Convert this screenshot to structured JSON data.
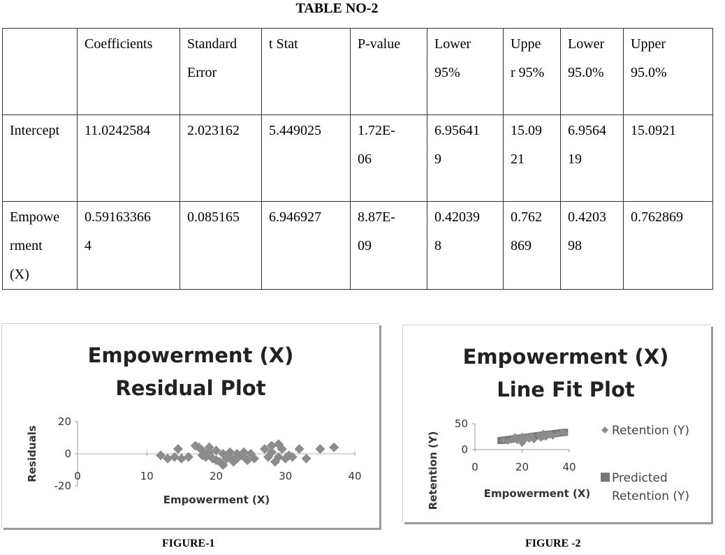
{
  "table": {
    "title": "TABLE NO-2",
    "header": {
      "c0": "",
      "c1": "Coefficients",
      "c2a": "Standard",
      "c2b": "Error",
      "c3": "t Stat",
      "c4": "P-value",
      "c5a": "Lower",
      "c5b": "95%",
      "c6a": "Uppe",
      "c6b": "r 95%",
      "c7a": "Lower",
      "c7b": "95.0%",
      "c8a": "Upper",
      "c8b": "95.0%"
    },
    "row1": {
      "label": "Intercept",
      "coef": "11.0242584",
      "se": "2.023162",
      "t": "5.449025",
      "p_a": "1.72E-",
      "p_b": "06",
      "l95_a": "6.95641",
      "l95_b": "9",
      "u95_a": "15.09",
      "u95_b": "21",
      "l950_a": "6.9564",
      "l950_b": "19",
      "u950": "15.0921"
    },
    "row2": {
      "label_a": "Empowe",
      "label_b": "rment",
      "label_c": "(X)",
      "coef_a": "0.59163366",
      "coef_b": "4",
      "se": "0.085165",
      "t": "6.946927",
      "p_a": "8.87E-",
      "p_b": "09",
      "l95_a": "0.42039",
      "l95_b": "8",
      "u95_a": "0.762",
      "u95_b": "869",
      "l950_a": "0.4203",
      "l950_b": "98",
      "u950": "0.762869"
    }
  },
  "figure1_label": "FIGURE-1",
  "figure2_label": "FIGURE -2",
  "chart_data": [
    {
      "type": "scatter",
      "title": "Empowerment (X) Residual Plot",
      "title_lines": [
        "Empowerment (X)",
        "Residual Plot"
      ],
      "xlabel": "Empowerment (X)",
      "ylabel": "Residuals",
      "xlim": [
        0,
        40
      ],
      "ylim": [
        -20,
        20
      ],
      "xticks": [
        "0",
        "10",
        "20",
        "30",
        "40"
      ],
      "yticks": [
        "20",
        "0",
        "-20"
      ],
      "marker_color": "#8c8c8c",
      "series": [
        {
          "x": [
            12,
            13,
            14,
            14.5,
            15,
            16,
            17,
            17.5,
            18,
            18,
            18.5,
            19,
            19,
            19.5,
            20,
            20,
            20.5,
            21,
            21,
            21.5,
            22,
            22,
            22.5,
            23,
            23,
            23.5,
            24,
            24,
            24.5,
            25,
            25.5,
            27,
            27.5,
            28,
            28,
            28.5,
            29,
            29,
            29.5,
            30,
            30.5,
            31,
            32,
            33,
            35,
            37
          ],
          "y": [
            -1,
            -3,
            -2,
            3,
            -3,
            -2,
            5,
            4,
            -1,
            2,
            -2,
            4,
            1,
            -3,
            -4,
            2,
            -5,
            0,
            -7,
            -3,
            1,
            -2,
            -5,
            0,
            -3,
            -1,
            -2,
            1,
            -4,
            0,
            -3,
            3,
            -2,
            5,
            1,
            -5,
            6,
            -2,
            3,
            -3,
            -1,
            -2,
            3,
            -3,
            3,
            4
          ]
        }
      ]
    },
    {
      "type": "scatter",
      "title": "Empowerment (X) Line Fit  Plot",
      "title_lines": [
        "Empowerment (X)",
        "Line Fit  Plot"
      ],
      "xlabel": "Empowerment (X)",
      "ylabel": "Retention (Y)",
      "xlim": [
        0,
        40
      ],
      "ylim": [
        0,
        50
      ],
      "xticks": [
        "0",
        "20",
        "40"
      ],
      "yticks": [
        "50",
        "0"
      ],
      "legend_position": "right",
      "legend": [
        "Retention (Y)",
        "Predicted Retention (Y)"
      ],
      "series": [
        {
          "name": "Retention (Y)",
          "color": "#8c8c8c",
          "x": [
            12,
            14,
            16,
            17,
            18,
            19,
            20,
            20,
            21,
            22,
            23,
            24,
            25,
            27,
            28,
            29,
            29,
            30,
            31,
            32,
            33,
            35,
            37,
            38
          ],
          "y": [
            18,
            16,
            21,
            25,
            17,
            23,
            12,
            26,
            18,
            24,
            20,
            27,
            19,
            28,
            22,
            32,
            25,
            24,
            29,
            30,
            26,
            30,
            34,
            32
          ]
        },
        {
          "name": "Predicted Retention (Y)",
          "color": "#777777",
          "x": [
            11,
            12,
            13,
            14,
            15,
            16,
            17,
            18,
            19,
            20,
            21,
            22,
            23,
            24,
            25,
            26,
            27,
            28,
            29,
            30,
            31,
            32,
            33,
            34,
            35,
            36,
            37,
            38
          ],
          "y": [
            17.5,
            18.1,
            18.7,
            19.3,
            19.9,
            20.5,
            21.1,
            21.7,
            22.3,
            22.9,
            23.4,
            24.0,
            24.6,
            25.2,
            25.8,
            26.4,
            27.0,
            27.6,
            28.2,
            28.8,
            29.4,
            30.0,
            30.5,
            31.1,
            31.7,
            32.3,
            32.9,
            33.5
          ]
        }
      ]
    }
  ]
}
